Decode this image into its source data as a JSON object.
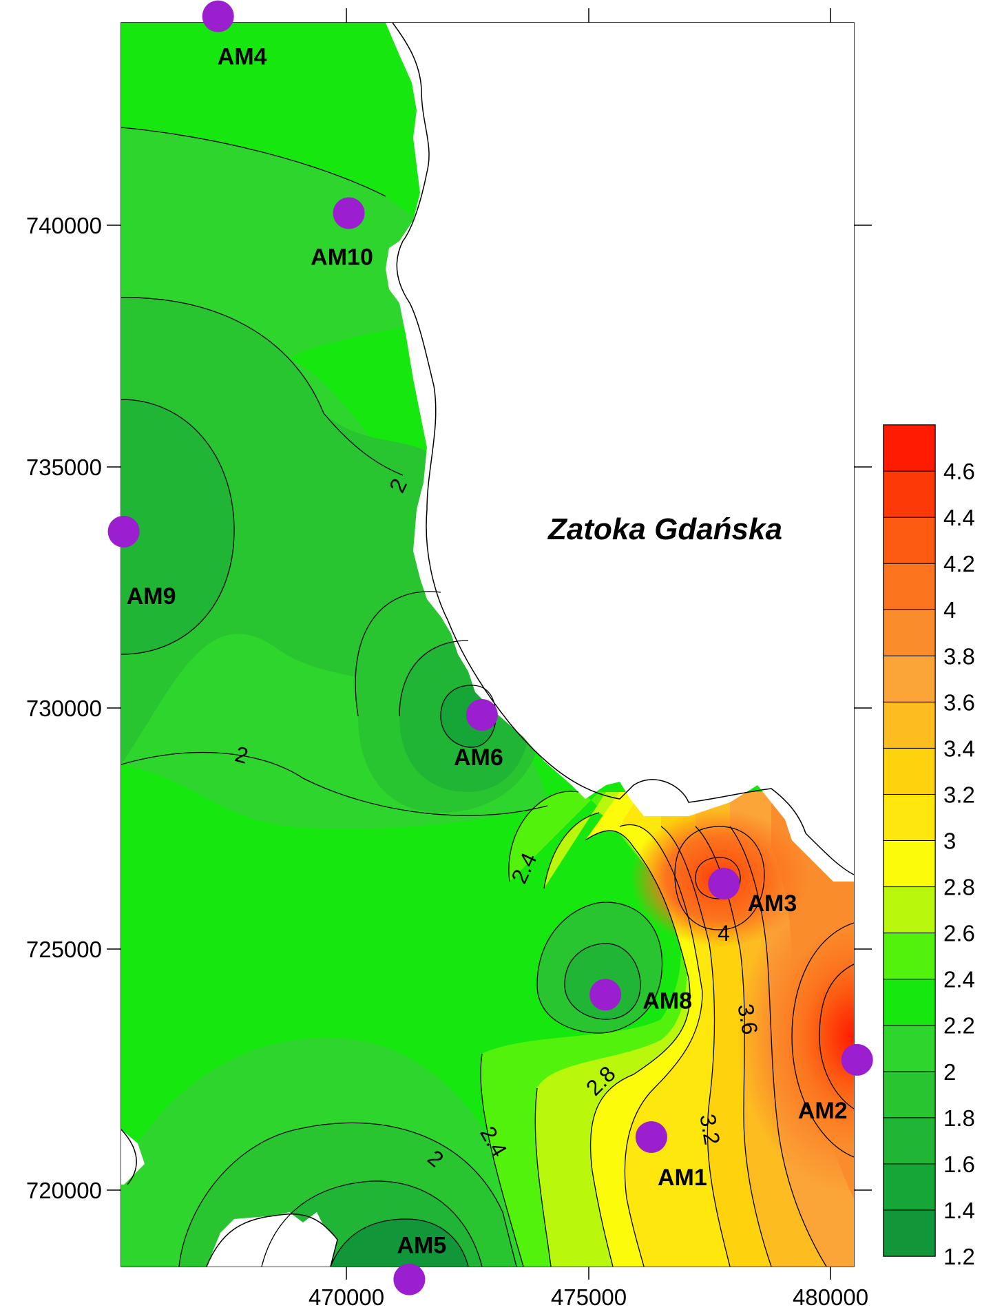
{
  "map": {
    "sea_label": "Zatoka Gdańska",
    "x_ticks": [
      {
        "value": 470000,
        "label": "470000"
      },
      {
        "value": 475000,
        "label": "475000"
      },
      {
        "value": 480000,
        "label": "480000"
      }
    ],
    "y_ticks": [
      {
        "value": 740000,
        "label": "740000"
      },
      {
        "value": 735000,
        "label": "735000"
      },
      {
        "value": 730000,
        "label": "730000"
      },
      {
        "value": 725000,
        "label": "725000"
      },
      {
        "value": 720000,
        "label": "720000"
      }
    ],
    "stations": [
      {
        "id": "AM4",
        "label": "AM4",
        "x": 467350,
        "y": 744330
      },
      {
        "id": "AM10",
        "label": "AM10",
        "x": 470050,
        "y": 740250
      },
      {
        "id": "AM9",
        "label": "AM9",
        "x": 465400,
        "y": 733650
      },
      {
        "id": "AM6",
        "label": "AM6",
        "x": 472800,
        "y": 729850
      },
      {
        "id": "AM3",
        "label": "AM3",
        "x": 477800,
        "y": 726350
      },
      {
        "id": "AM8",
        "label": "AM8",
        "x": 475350,
        "y": 724050
      },
      {
        "id": "AM2",
        "label": "AM2",
        "x": 480550,
        "y": 722700
      },
      {
        "id": "AM1",
        "label": "AM1",
        "x": 476300,
        "y": 721100
      },
      {
        "id": "AM5",
        "label": "AM5",
        "x": 471300,
        "y": 718150
      }
    ],
    "contour_labels": [
      {
        "text": "2"
      },
      {
        "text": "2"
      },
      {
        "text": "2.4"
      },
      {
        "text": "4"
      },
      {
        "text": "3.6"
      },
      {
        "text": "2.8"
      },
      {
        "text": "3.2"
      },
      {
        "text": "2.4"
      },
      {
        "text": "2"
      }
    ],
    "colors": {
      "station": "#9b1fcf",
      "land": "#ffffff",
      "outline": "#000000"
    }
  },
  "legend": {
    "levels": [
      {
        "value": 1.2,
        "label": "1.2"
      },
      {
        "value": 1.4,
        "label": "1.4"
      },
      {
        "value": 1.6,
        "label": "1.6"
      },
      {
        "value": 1.8,
        "label": "1.8"
      },
      {
        "value": 2.0,
        "label": "2"
      },
      {
        "value": 2.2,
        "label": "2.2"
      },
      {
        "value": 2.4,
        "label": "2.4"
      },
      {
        "value": 2.6,
        "label": "2.6"
      },
      {
        "value": 2.8,
        "label": "2.8"
      },
      {
        "value": 3.0,
        "label": "3"
      },
      {
        "value": 3.2,
        "label": "3.2"
      },
      {
        "value": 3.4,
        "label": "3.4"
      },
      {
        "value": 3.6,
        "label": "3.6"
      },
      {
        "value": 3.8,
        "label": "3.8"
      },
      {
        "value": 4.0,
        "label": "4"
      },
      {
        "value": 4.2,
        "label": "4.2"
      },
      {
        "value": 4.4,
        "label": "4.4"
      },
      {
        "value": 4.6,
        "label": "4.6"
      }
    ],
    "bands": [
      {
        "from": 1.2,
        "to": 1.4,
        "color": "#119739"
      },
      {
        "from": 1.4,
        "to": 1.6,
        "color": "#15a637"
      },
      {
        "from": 1.6,
        "to": 1.8,
        "color": "#20b534"
      },
      {
        "from": 1.8,
        "to": 2.0,
        "color": "#28c530"
      },
      {
        "from": 2.0,
        "to": 2.2,
        "color": "#2dd52c"
      },
      {
        "from": 2.2,
        "to": 2.4,
        "color": "#16e80f"
      },
      {
        "from": 2.4,
        "to": 2.6,
        "color": "#53f20c"
      },
      {
        "from": 2.6,
        "to": 2.8,
        "color": "#b9f70d"
      },
      {
        "from": 2.8,
        "to": 3.0,
        "color": "#fbfb0a"
      },
      {
        "from": 3.0,
        "to": 3.2,
        "color": "#fee70d"
      },
      {
        "from": 3.2,
        "to": 3.4,
        "color": "#fed20c"
      },
      {
        "from": 3.4,
        "to": 3.6,
        "color": "#fdbd21"
      },
      {
        "from": 3.6,
        "to": 3.8,
        "color": "#fba538"
      },
      {
        "from": 3.8,
        "to": 4.0,
        "color": "#fb8c2b"
      },
      {
        "from": 4.0,
        "to": 4.2,
        "color": "#fc741e"
      },
      {
        "from": 4.2,
        "to": 4.4,
        "color": "#fd5a12"
      },
      {
        "from": 4.4,
        "to": 4.6,
        "color": "#fe3908"
      },
      {
        "from": 4.6,
        "to": 4.8,
        "color": "#ff1a02"
      }
    ]
  }
}
